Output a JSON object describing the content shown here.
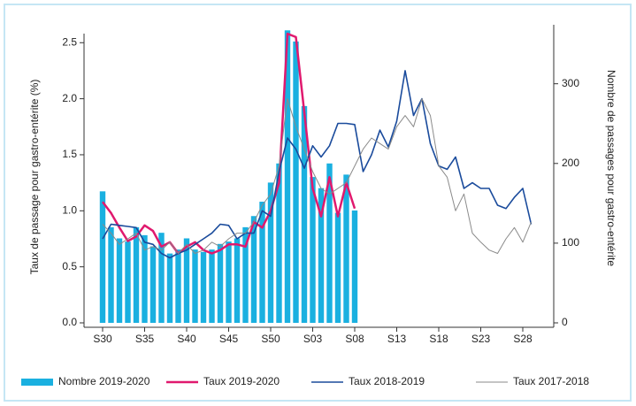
{
  "chart_data": {
    "type": "combo",
    "y_label": "Taux de passage pour gastro-entérite (%)",
    "y2_label": "Nombre de passages pour gastro-entérite",
    "categories": [
      "S30",
      null,
      null,
      null,
      null,
      "S35",
      null,
      null,
      null,
      null,
      "S40",
      null,
      null,
      null,
      null,
      "S45",
      null,
      null,
      null,
      null,
      "S50",
      null,
      null,
      null,
      null,
      "S03",
      null,
      null,
      null,
      null,
      "S08",
      null,
      null,
      null,
      null,
      "S13",
      null,
      null,
      null,
      null,
      "S18",
      null,
      null,
      null,
      null,
      "S23",
      null,
      null,
      null,
      null,
      "S28",
      null
    ],
    "ylim": [
      0,
      2.66
    ],
    "yticks": [
      {
        "value": 0,
        "label": "0.0"
      },
      0.5,
      {
        "value": 1,
        "label": "1.0"
      },
      1.5,
      {
        "value": 2,
        "label": "2.0"
      },
      2.5
    ],
    "y2lim": [
      0,
      374
    ],
    "y2ticks": [
      0,
      100,
      200,
      300
    ],
    "legend": "bottom",
    "series": [
      {
        "name": "Nombre 2019-2020",
        "type": "bar",
        "axis": "y2",
        "color": "#1ab0e0",
        "values": [
          165,
          120,
          106,
          102,
          120,
          110,
          96,
          113,
          87,
          92,
          106,
          92,
          89,
          92,
          99,
          102,
          106,
          120,
          134,
          152,
          176,
          200,
          367,
          353,
          272,
          183,
          169,
          200,
          138,
          186,
          141,
          null,
          null,
          null,
          null,
          null,
          null,
          null,
          null,
          null,
          null,
          null,
          null,
          null,
          null,
          null,
          null,
          null,
          null,
          null,
          null,
          null
        ]
      },
      {
        "name": "Taux 2019-2020",
        "type": "line",
        "color": "#e0196e",
        "width": 2.5,
        "values": [
          1.08,
          0.98,
          0.85,
          0.73,
          0.77,
          0.87,
          0.82,
          0.68,
          0.72,
          0.62,
          0.68,
          0.72,
          0.65,
          0.62,
          0.65,
          0.7,
          0.7,
          0.68,
          0.9,
          0.85,
          1.0,
          1.25,
          2.58,
          2.55,
          1.88,
          1.2,
          0.95,
          1.3,
          0.95,
          1.25,
          1.02,
          null,
          null,
          null,
          null,
          null,
          null,
          null,
          null,
          null,
          null,
          null,
          null,
          null,
          null,
          null,
          null,
          null,
          null,
          null,
          null,
          null
        ]
      },
      {
        "name": "Taux 2018-2019",
        "type": "line",
        "color": "#1a4b9c",
        "width": 1.6,
        "values": [
          0.75,
          0.88,
          0.87,
          0.86,
          0.85,
          0.72,
          0.7,
          0.62,
          0.58,
          0.62,
          0.65,
          0.7,
          0.75,
          0.8,
          0.88,
          0.87,
          0.75,
          0.8,
          0.8,
          1.0,
          0.95,
          1.35,
          1.65,
          1.55,
          1.38,
          1.58,
          1.48,
          1.58,
          1.78,
          1.78,
          1.77,
          1.35,
          1.5,
          1.72,
          1.57,
          1.8,
          2.25,
          1.85,
          2.0,
          1.6,
          1.4,
          1.37,
          1.48,
          1.2,
          1.25,
          1.2,
          1.2,
          1.05,
          1.02,
          1.12,
          1.2,
          0.88
        ]
      },
      {
        "name": "Taux 2017-2018",
        "type": "line",
        "color": "#8a8a8a",
        "width": 1,
        "values": [
          0.88,
          0.8,
          0.7,
          0.75,
          0.8,
          0.65,
          0.68,
          0.65,
          0.72,
          0.62,
          0.7,
          0.62,
          0.65,
          0.72,
          0.68,
          0.75,
          0.8,
          0.8,
          0.9,
          1.05,
          1.15,
          1.4,
          2.0,
          1.75,
          1.55,
          1.35,
          1.2,
          1.15,
          1.2,
          1.25,
          1.4,
          1.55,
          1.65,
          1.6,
          1.55,
          1.75,
          1.85,
          1.75,
          2.0,
          1.85,
          1.4,
          1.3,
          1.0,
          1.15,
          0.8,
          0.72,
          0.65,
          0.62,
          0.75,
          0.85,
          0.72,
          0.9
        ]
      }
    ]
  }
}
